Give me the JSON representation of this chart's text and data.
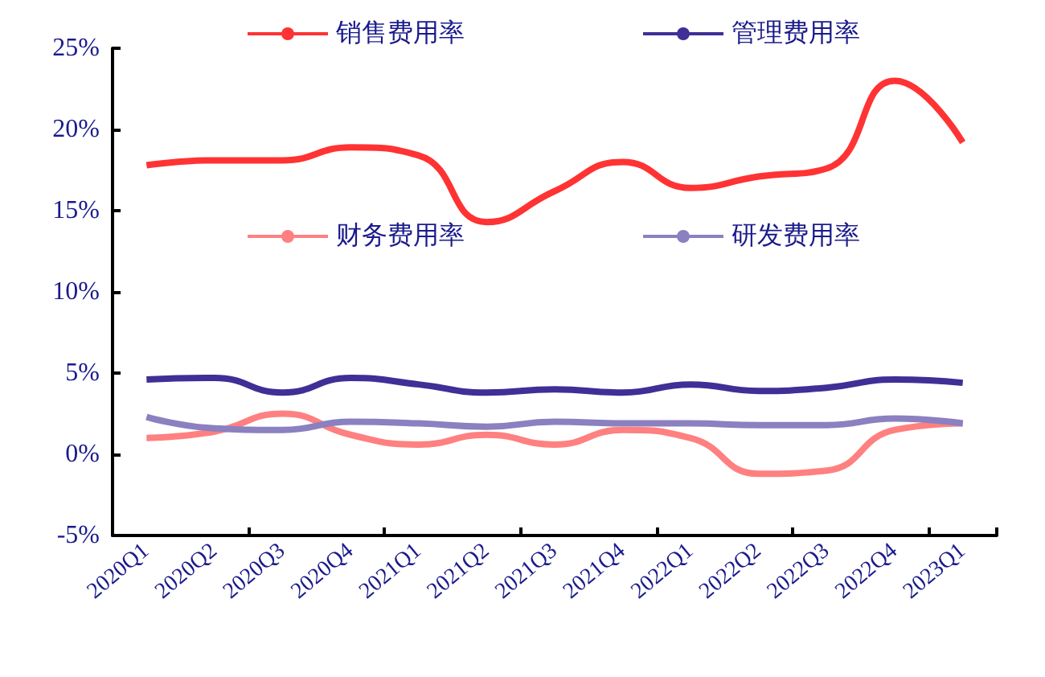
{
  "chart_data": {
    "type": "line",
    "categories": [
      "2020Q1",
      "2020Q2",
      "2020Q3",
      "2020Q4",
      "2021Q1",
      "2021Q2",
      "2021Q3",
      "2021Q4",
      "2022Q1",
      "2022Q2",
      "2022Q3",
      "2022Q4",
      "2023Q1"
    ],
    "series": [
      {
        "name": "销售费用率",
        "color": "#ff3333",
        "values": [
          17.8,
          18.1,
          18.1,
          18.9,
          18.4,
          14.3,
          16.2,
          18.0,
          16.4,
          17.1,
          17.6,
          23.0,
          19.2
        ]
      },
      {
        "name": "管理费用率",
        "color": "#3f2f96",
        "values": [
          4.6,
          4.7,
          3.8,
          4.7,
          4.3,
          3.8,
          4.0,
          3.8,
          4.3,
          3.9,
          4.1,
          4.6,
          4.4
        ]
      },
      {
        "name": "财务费用率",
        "color": "#ff8080",
        "values": [
          1.0,
          1.4,
          2.5,
          1.2,
          0.6,
          1.2,
          0.6,
          1.5,
          1.0,
          -1.2,
          -1.0,
          1.5,
          1.9
        ]
      },
      {
        "name": "研发费用率",
        "color": "#8b80c0",
        "values": [
          2.3,
          1.6,
          1.5,
          2.0,
          1.9,
          1.7,
          2.0,
          1.9,
          1.9,
          1.8,
          1.8,
          2.2,
          1.9
        ]
      }
    ],
    "ylim": [
      -5,
      25
    ],
    "yticks": [
      {
        "value": -5,
        "label": "-5%"
      },
      {
        "value": 0,
        "label": "0%"
      },
      {
        "value": 5,
        "label": "5%"
      },
      {
        "value": 10,
        "label": "10%"
      },
      {
        "value": 15,
        "label": "15%"
      },
      {
        "value": 20,
        "label": "20%"
      },
      {
        "value": 25,
        "label": "25%"
      }
    ],
    "legend": "top",
    "grid": false,
    "marker": "none",
    "line_style": "solid"
  }
}
